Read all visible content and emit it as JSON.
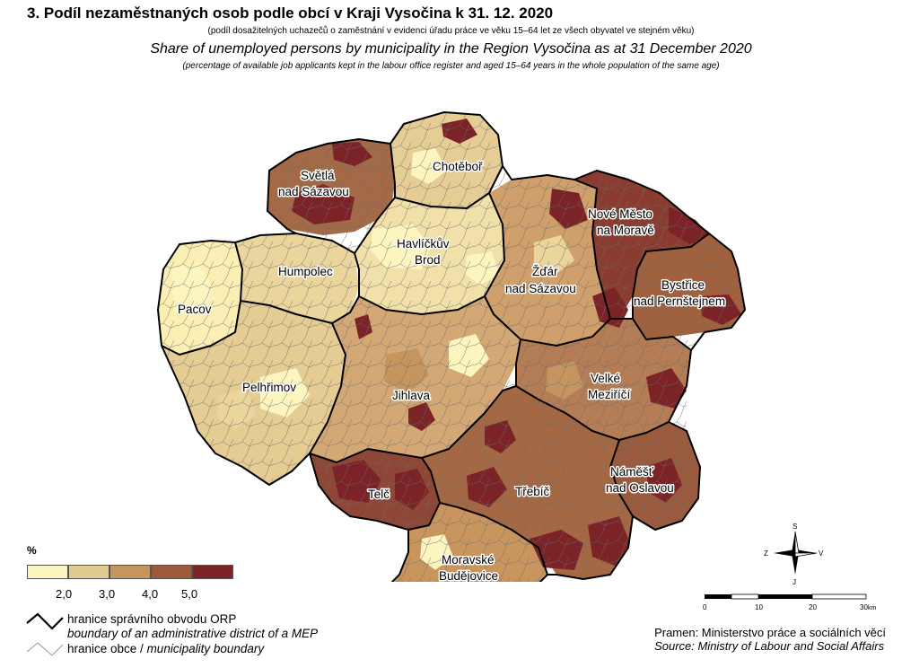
{
  "title": {
    "cz": "3. Podíl nezaměstnaných osob podle obcí v Kraji Vysočina k 31. 12. 2020",
    "cz_sub": "(podíl dosažitelných uchazečů o zaměstnání v evidenci úřadu práce ve věku 15–64 let ze všech obyvatel ve stejném věku)",
    "en": "Share of unemployed persons by municipality in the Region Vysočina as at 31 December 2020",
    "en_sub": "(percentage of available job applicants kept in the labour office register and aged 15–64 years in the whole population of the same age)"
  },
  "map_labels": {
    "chotebor": "Chotěboř",
    "svetla_1": "Světlá",
    "svetla_2": "nad Sázavou",
    "nove_mesto_1": "Nové Město",
    "nove_mesto_2": "na Moravě",
    "havlickuv_1": "Havlíčkův",
    "havlickuv_2": "Brod",
    "humpolec": "Humpolec",
    "zdar_1": "Žďár",
    "zdar_2": "nad Sázavou",
    "bystrice_1": "Bystřice",
    "bystrice_2": "nad Pernštejnem",
    "pacov": "Pacov",
    "pelhrimov": "Pelhřimov",
    "jihlava": "Jihlava",
    "velke_1": "Velké",
    "velke_2": "Meziříčí",
    "namest_1": "Náměšť",
    "namest_2": "nad Oslavou",
    "telc": "Telč",
    "trebic": "Třebíč",
    "moravske_1": "Moravské",
    "moravske_2": "Budějovice"
  },
  "legend": {
    "unit": "%",
    "ticks": [
      "2,0",
      "3,0",
      "4,0",
      "5,0"
    ],
    "colors": [
      "#fdf5bf",
      "#e2cb92",
      "#c4955f",
      "#9c5a3c",
      "#7b2326"
    ],
    "orp_boundary_cz": "hranice správního obvodu ORP",
    "orp_boundary_en": "boundary of an administrative district of a MEP",
    "muni_boundary_cz": "hranice obce / ",
    "muni_boundary_en": "municipality boundary"
  },
  "source": {
    "cz": "Pramen: Ministerstvo práce a sociálních věcí",
    "en": "Source: Ministry of Labour and Social Affairs"
  },
  "scale": {
    "ticks": [
      "0",
      "10",
      "20",
      "30"
    ],
    "unit": "km"
  },
  "compass": {
    "north": "S",
    "south": "J",
    "west": "Z",
    "east": "V"
  }
}
